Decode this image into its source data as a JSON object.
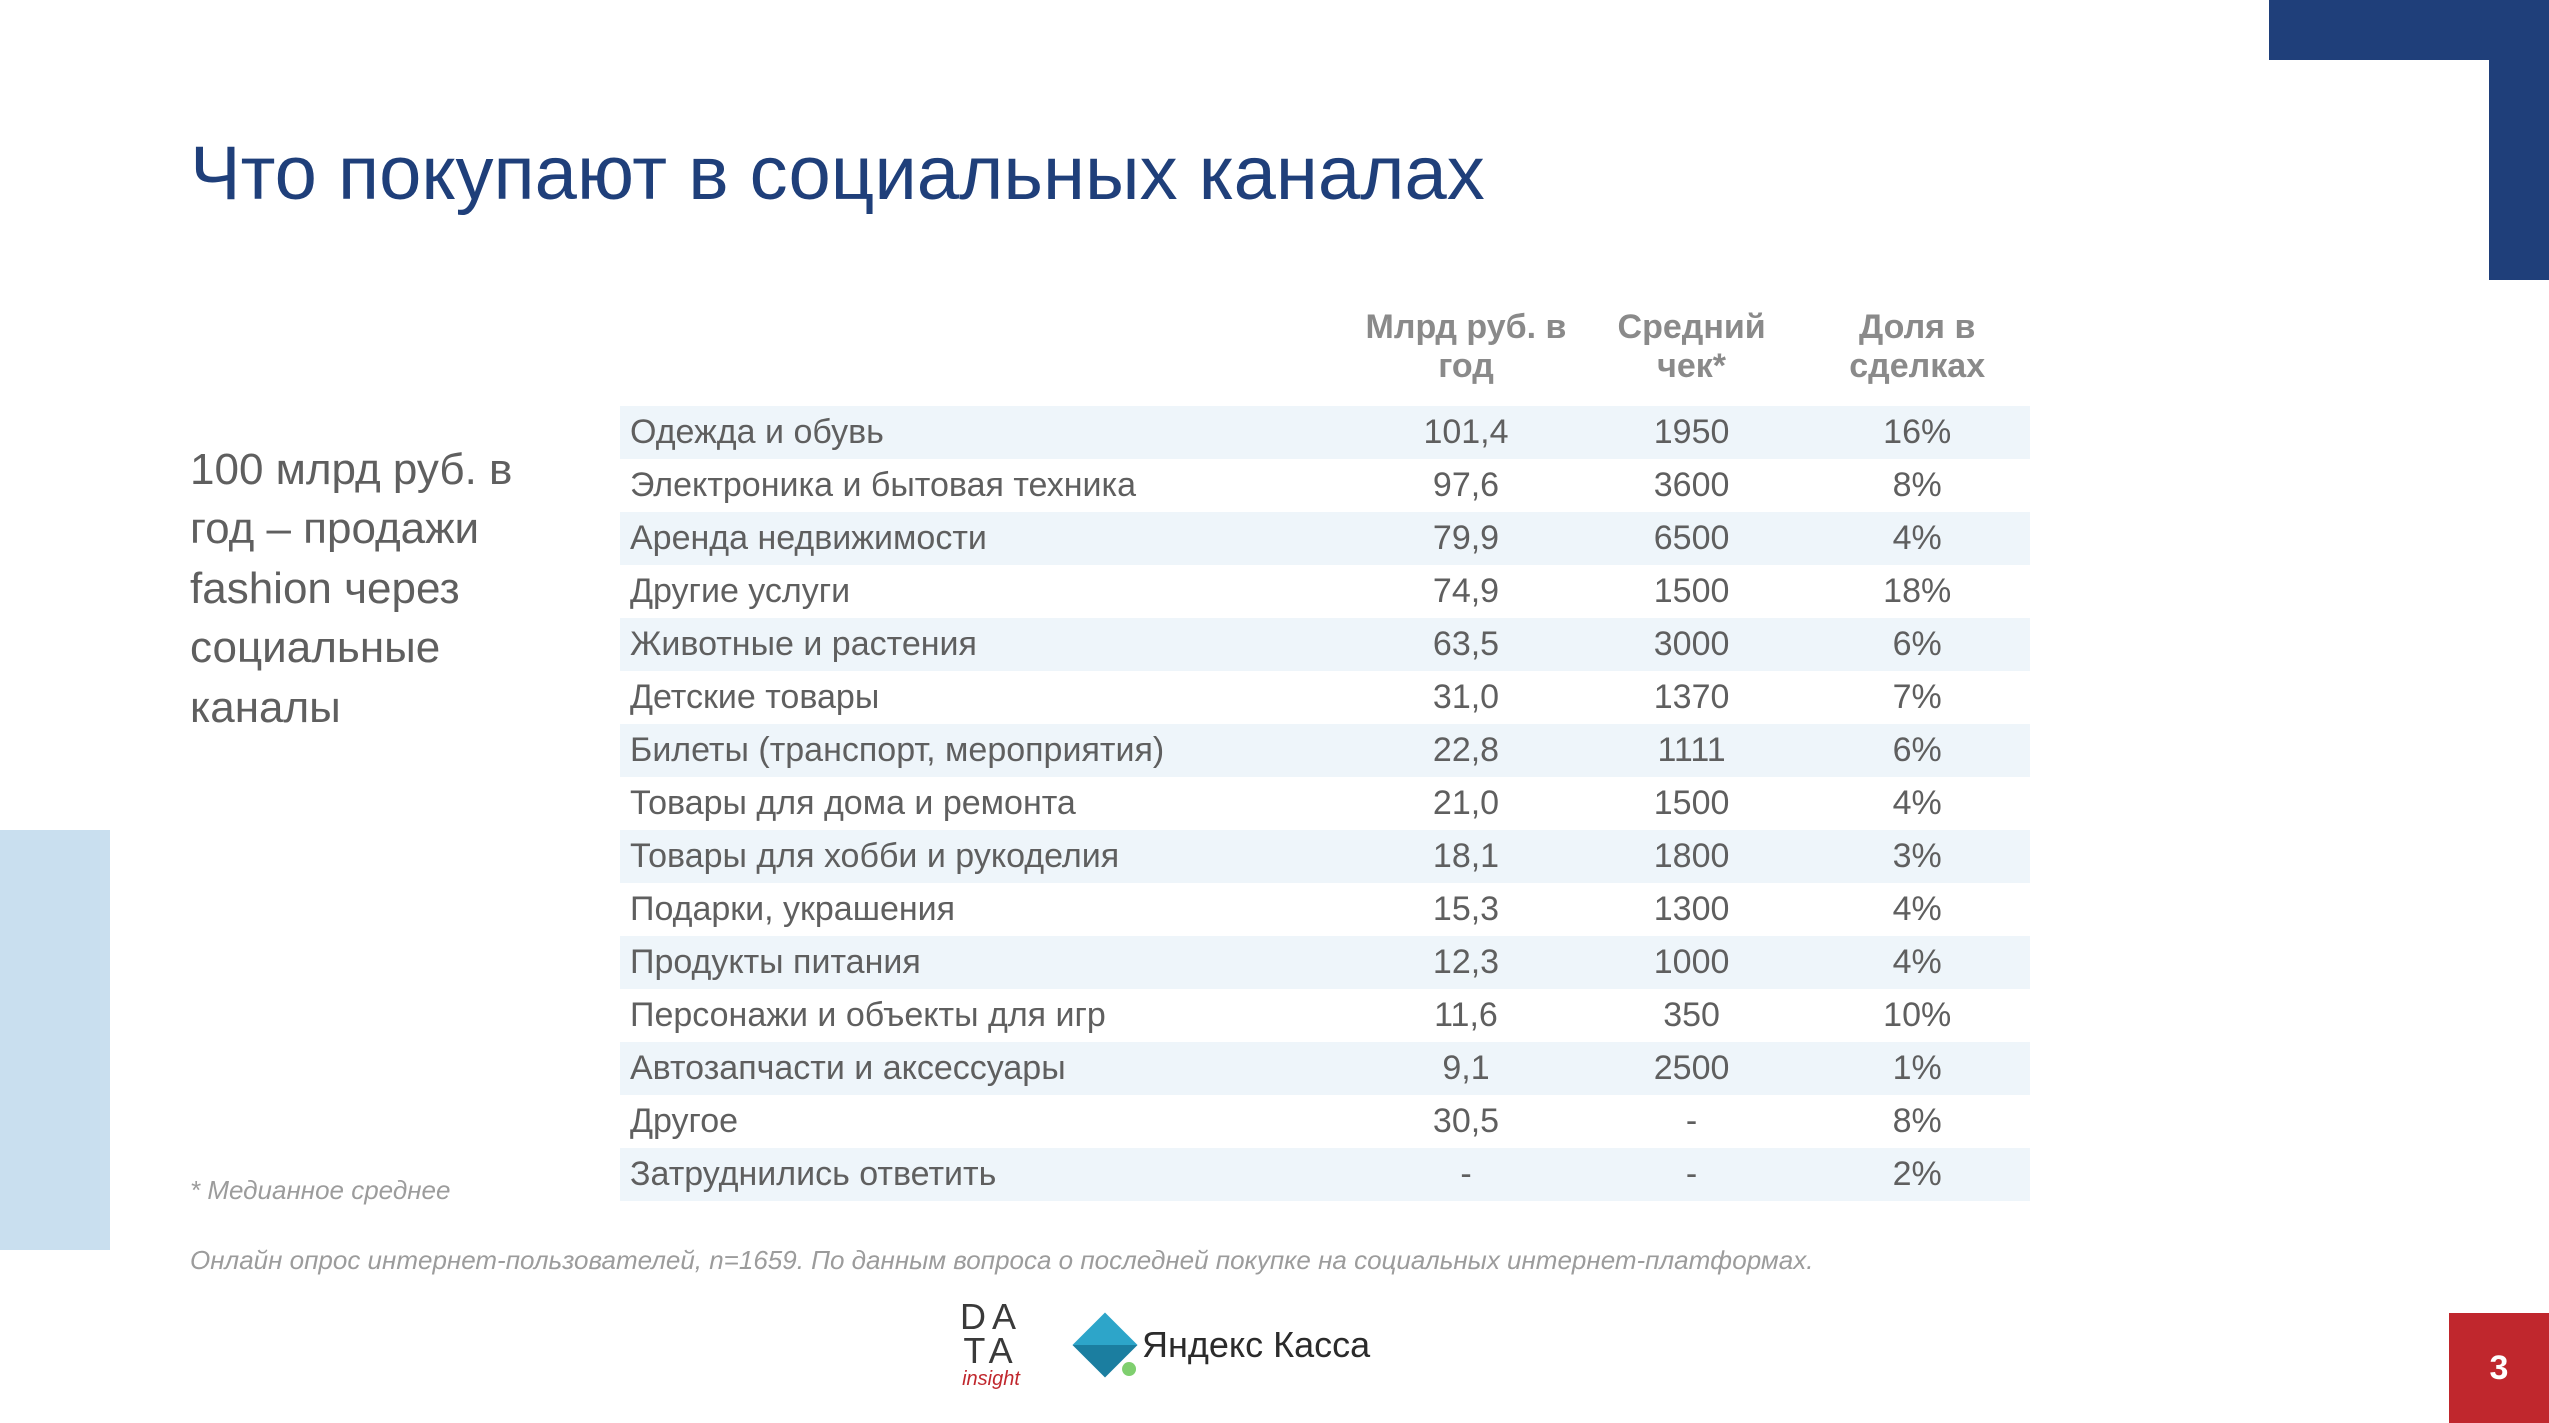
{
  "title": "Что покупают в социальных каналах",
  "callout": "100 млрд руб. в год – продажи fashion через социальные каналы",
  "table": {
    "columns": [
      "",
      "Млрд руб. в год",
      "Средний чек*",
      "Доля в сделках"
    ],
    "rows": [
      [
        "Одежда и обувь",
        "101,4",
        "1950",
        "16%"
      ],
      [
        "Электроника и бытовая техника",
        "97,6",
        "3600",
        "8%"
      ],
      [
        "Аренда недвижимости",
        "79,9",
        "6500",
        "4%"
      ],
      [
        "Другие услуги",
        "74,9",
        "1500",
        "18%"
      ],
      [
        "Животные и растения",
        "63,5",
        "3000",
        "6%"
      ],
      [
        "Детские товары",
        "31,0",
        "1370",
        "7%"
      ],
      [
        "Билеты (транспорт, мероприятия)",
        "22,8",
        "1111",
        "6%"
      ],
      [
        "Товары для дома и ремонта",
        "21,0",
        "1500",
        "4%"
      ],
      [
        "Товары для хобби и рукоделия",
        "18,1",
        "1800",
        "3%"
      ],
      [
        "Подарки, украшения",
        "15,3",
        "1300",
        "4%"
      ],
      [
        "Продукты питания",
        "12,3",
        "1000",
        "4%"
      ],
      [
        "Персонажи и объекты для игр",
        "11,6",
        "350",
        "10%"
      ],
      [
        "Автозапчасти и аксессуары",
        "9,1",
        "2500",
        "1%"
      ],
      [
        "Другое",
        "30,5",
        "-",
        "8%"
      ],
      [
        "Затруднились ответить",
        "-",
        "-",
        "2%"
      ]
    ]
  },
  "footnotes": {
    "fn1": "* Медианное среднее",
    "fn2": "Онлайн опрос интернет-пользователей, n=1659. По данным вопроса о последней покупке на социальных интернет-платформах."
  },
  "logos": {
    "data_insight_l1": "DA",
    "data_insight_l2": "TA",
    "data_insight_sub": "insight",
    "yandex": "Яндекс",
    "kassa": "Касса"
  },
  "page_number": "3",
  "colors": {
    "title": "#1f3f7a",
    "corner": "#1f3f7a",
    "accent_left": "#c9dfef",
    "page_box": "#c0272d",
    "row_stripe": "#eef5fa",
    "header_text": "#8a8a8a",
    "body_text": "#5f5f5f",
    "footnote_text": "#9c9c9c"
  }
}
